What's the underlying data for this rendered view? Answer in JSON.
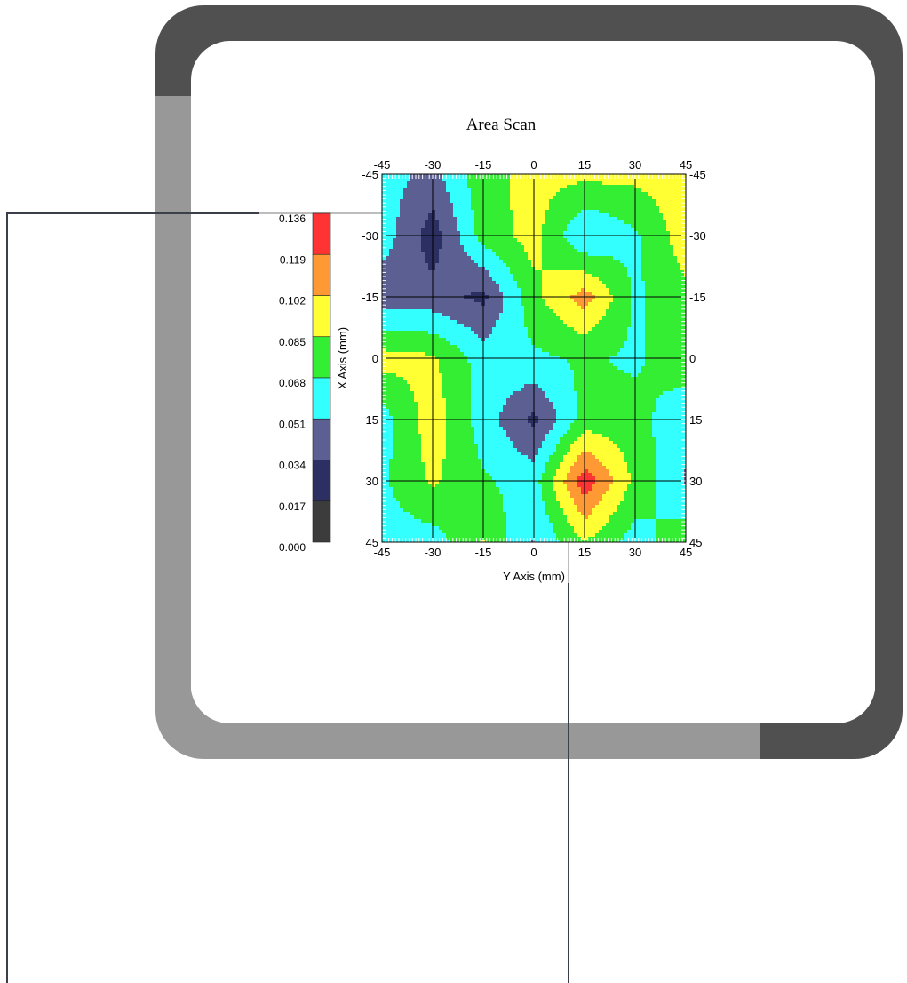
{
  "chart_data": {
    "type": "heatmap",
    "title": "Area Scan",
    "xlabel": "Y Axis (mm)",
    "ylabel": "X Axis (mm)",
    "x": [
      -45,
      -30,
      -15,
      0,
      15,
      30,
      45
    ],
    "y": [
      -45,
      -30,
      -15,
      0,
      15,
      30,
      45
    ],
    "xlim": [
      -45,
      45
    ],
    "ylim": [
      -45,
      45
    ],
    "x_ticks": [
      "-45",
      "-30",
      "-15",
      "0",
      "15",
      "30",
      "45"
    ],
    "y_ticks": [
      "-45",
      "-30",
      "-15",
      "0",
      "15",
      "30",
      "45"
    ],
    "grid": true,
    "values": [
      [
        0.06,
        0.045,
        0.08,
        0.09,
        0.09,
        0.09,
        0.095
      ],
      [
        0.06,
        0.025,
        0.075,
        0.092,
        0.05,
        0.065,
        0.095
      ],
      [
        0.04,
        0.04,
        0.03,
        0.08,
        0.11,
        0.065,
        0.08
      ],
      [
        0.092,
        0.088,
        0.06,
        0.065,
        0.07,
        0.065,
        0.08
      ],
      [
        0.06,
        0.095,
        0.06,
        0.03,
        0.075,
        0.075,
        0.055
      ],
      [
        0.065,
        0.088,
        0.07,
        0.06,
        0.13,
        0.08,
        0.05
      ],
      [
        0.06,
        0.06,
        0.085,
        0.05,
        0.085,
        0.06,
        0.08
      ]
    ],
    "legend": {
      "labels": [
        "0.136",
        "0.119",
        "0.102",
        "0.085",
        "0.068",
        "0.051",
        "0.034",
        "0.017",
        "0.000"
      ],
      "bounds": [
        0.0,
        0.017,
        0.034,
        0.051,
        0.068,
        0.085,
        0.102,
        0.119,
        0.136
      ],
      "colors": [
        "#3c3c3c",
        "#2b2f62",
        "#5c5f92",
        "#33ffff",
        "#33ee33",
        "#ffff33",
        "#ff9933",
        "#ff3333"
      ],
      "placement": "left"
    }
  },
  "frame": {
    "color_dark": "#505050",
    "color_light": "#989898",
    "line_color": "#3a3f4a"
  }
}
